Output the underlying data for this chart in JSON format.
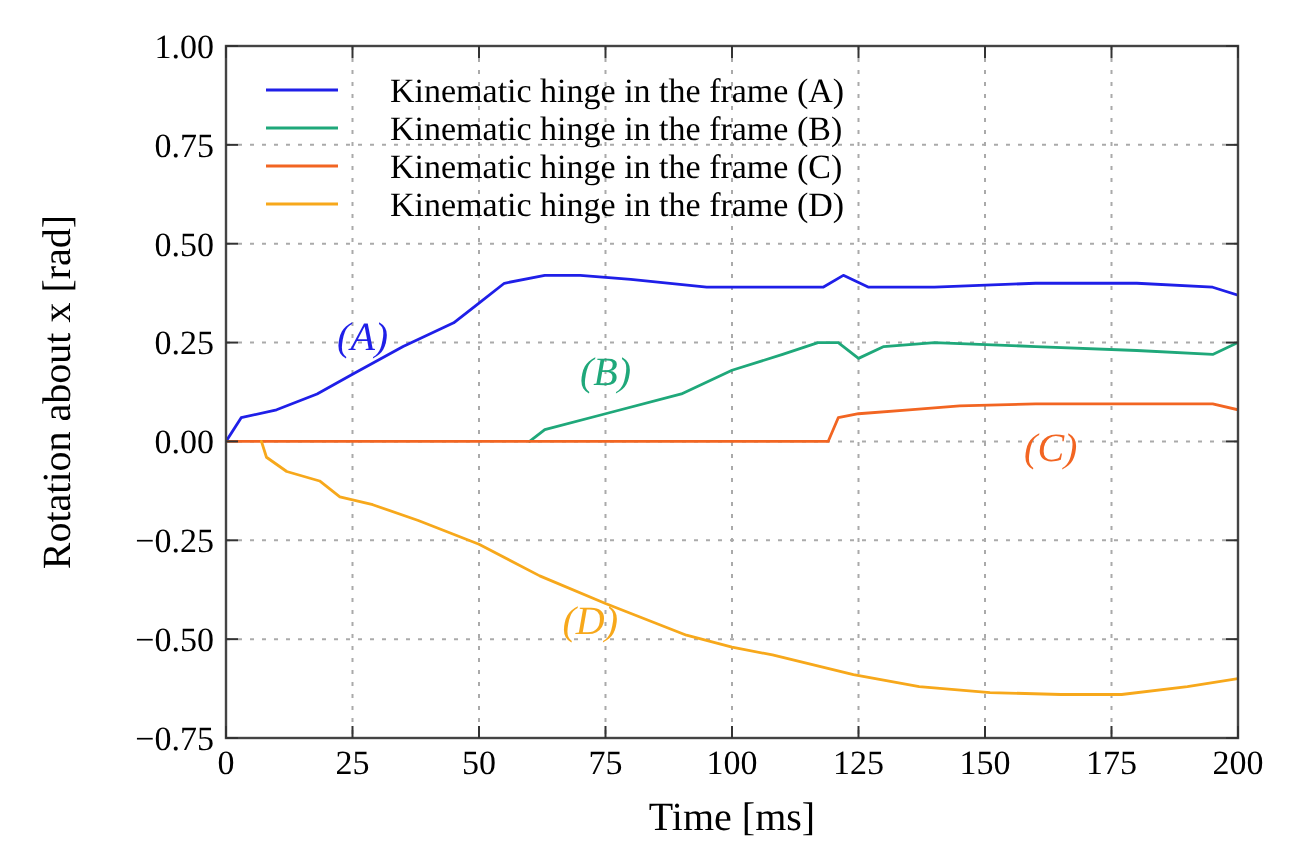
{
  "chart_data": {
    "type": "line",
    "xlabel": "Time [ms]",
    "ylabel": "Rotation about x [rad]",
    "xlim": [
      0,
      200
    ],
    "ylim": [
      -0.75,
      1
    ],
    "xticks": [
      0,
      25,
      50,
      75,
      100,
      125,
      150,
      175,
      200
    ],
    "yticks": [
      {
        "value": -0.75,
        "label": "−0.75"
      },
      {
        "value": -0.5,
        "label": "−0.50"
      },
      {
        "value": -0.25,
        "label": "−0.25"
      },
      {
        "value": 0,
        "label": "0.00"
      },
      {
        "value": 0.25,
        "label": "0.25"
      },
      {
        "value": 0.5,
        "label": "0.50"
      },
      {
        "value": 0.75,
        "label": "0.75"
      },
      {
        "value": 1,
        "label": "1.00"
      }
    ],
    "grid": true,
    "legend": "top left",
    "line_style": "solid",
    "series": [
      {
        "name": "Kinematic hinge in the frame (A)",
        "color": "#1f1fe8",
        "x": [
          0,
          3,
          10,
          18,
          25,
          35,
          45,
          50,
          55,
          63,
          70,
          80,
          95,
          110,
          118,
          122,
          127,
          140,
          160,
          180,
          195,
          200
        ],
        "values": [
          0,
          0.06,
          0.08,
          0.12,
          0.17,
          0.24,
          0.3,
          0.35,
          0.4,
          0.42,
          0.42,
          0.41,
          0.39,
          0.39,
          0.39,
          0.42,
          0.39,
          0.39,
          0.4,
          0.4,
          0.39,
          0.37
        ]
      },
      {
        "name": "Kinematic hinge in the frame (B)",
        "color": "#1fa87a",
        "x": [
          60,
          63,
          75,
          90,
          100,
          110,
          117,
          121,
          125,
          130,
          140,
          160,
          180,
          195,
          200
        ],
        "values": [
          0,
          0.03,
          0.07,
          0.12,
          0.18,
          0.22,
          0.25,
          0.25,
          0.21,
          0.24,
          0.25,
          0.24,
          0.23,
          0.22,
          0.25
        ]
      },
      {
        "name": "Kinematic hinge in the frame (C)",
        "color": "#f26522",
        "x": [
          0,
          119,
          121,
          125,
          135,
          145,
          160,
          180,
          195,
          200
        ],
        "values": [
          0,
          0,
          0.06,
          0.07,
          0.08,
          0.09,
          0.095,
          0.095,
          0.095,
          0.08
        ]
      },
      {
        "name": "Kinematic hinge in the frame (D)",
        "color": "#f7a81b",
        "x": [
          7,
          8,
          12,
          18.5,
          22.5,
          29,
          38,
          50,
          62,
          75,
          91,
          100,
          108,
          124,
          137,
          151,
          165,
          177,
          190,
          200
        ],
        "values": [
          0,
          -0.04,
          -0.076,
          -0.1,
          -0.14,
          -0.16,
          -0.2,
          -0.26,
          -0.34,
          -0.41,
          -0.49,
          -0.52,
          -0.54,
          -0.59,
          -0.62,
          -0.635,
          -0.64,
          -0.64,
          -0.62,
          -0.6
        ]
      }
    ],
    "annotations": [
      "(A)",
      "(B)",
      "(C)",
      "(D)"
    ]
  }
}
